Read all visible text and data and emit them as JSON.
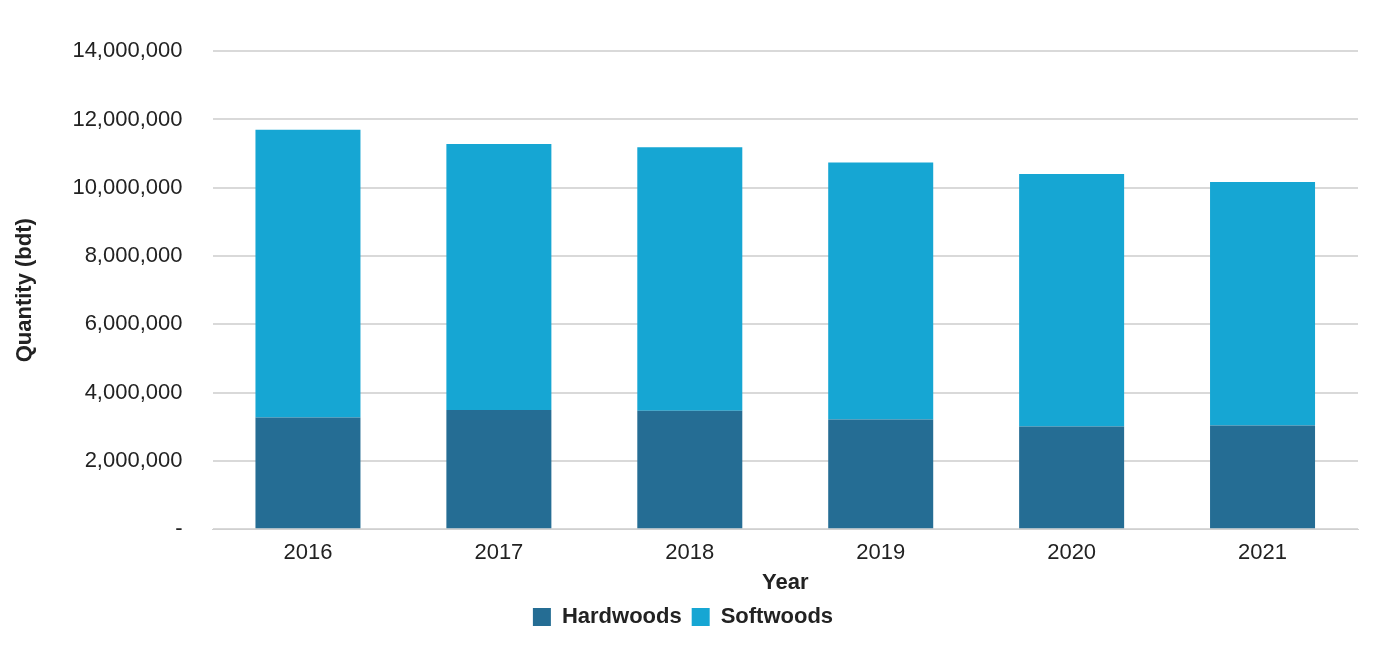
{
  "chart_data": {
    "type": "bar",
    "xlabel": "Year",
    "ylabel": "Quantity (bdt)",
    "categories": [
      "2016",
      "2017",
      "2018",
      "2019",
      "2020",
      "2021"
    ],
    "series": [
      {
        "name": "Hardwoods",
        "color": "#256d94",
        "values": [
          3270000,
          3490000,
          3470000,
          3210000,
          3010000,
          3040000
        ]
      },
      {
        "name": "Softwoods",
        "color": "#16a6d3",
        "values": [
          8430000,
          7790000,
          7720000,
          7530000,
          7390000,
          7130000
        ]
      }
    ],
    "stacked": true,
    "ylim": [
      0,
      14000000
    ],
    "yticks": [
      {
        "value": 0,
        "label": "-"
      },
      {
        "value": 2000000,
        "label": "2,000,000"
      },
      {
        "value": 4000000,
        "label": "4,000,000"
      },
      {
        "value": 6000000,
        "label": "6,000,000"
      },
      {
        "value": 8000000,
        "label": "8,000,000"
      },
      {
        "value": 10000000,
        "label": "10,000,000"
      },
      {
        "value": 12000000,
        "label": "12,000,000"
      },
      {
        "value": 14000000,
        "label": "14,000,000"
      }
    ],
    "grid": "y",
    "legend": "bottom"
  }
}
